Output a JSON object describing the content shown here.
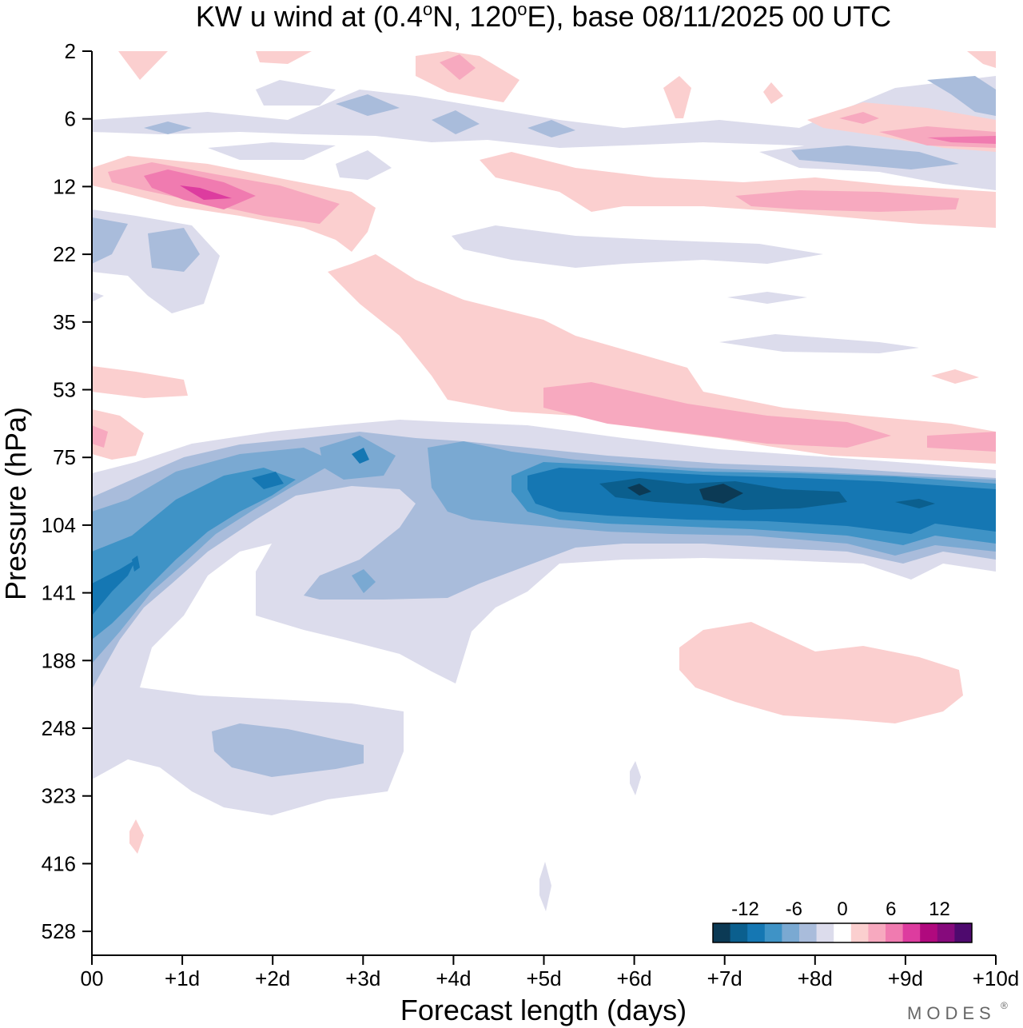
{
  "chart_data": {
    "type": "heatmap",
    "subtype": "filled-contour time-pressure section",
    "title": "KW u wind at (0.4°N, 120°E),  base 08/11/2025  00 UTC",
    "title_parts": {
      "prefix": "KW u wind at (0.4",
      "deg1": "o",
      "mid": "N, 120",
      "deg2": "o",
      "suffix": "E),  base 08/11/2025  00 UTC"
    },
    "xlabel": "Forecast length (days)",
    "ylabel": "Pressure (hPa)",
    "x_ticks": [
      "00",
      "+1d",
      "+2d",
      "+3d",
      "+4d",
      "+5d",
      "+6d",
      "+7d",
      "+8d",
      "+9d",
      "+10d"
    ],
    "x_range_days": [
      0,
      10
    ],
    "y_ticks_hpa": [
      "2",
      "6",
      "12",
      "22",
      "35",
      "53",
      "75",
      "104",
      "141",
      "188",
      "248",
      "323",
      "416",
      "528"
    ],
    "y_range_hpa": [
      2,
      528
    ],
    "colorbar": {
      "tick_labels": [
        "-12",
        "-6",
        "0",
        "6",
        "12"
      ],
      "levels": [
        -16,
        -14,
        -12,
        -10,
        -8,
        -6,
        -4,
        -2,
        2,
        4,
        6,
        8,
        10,
        12,
        14,
        16
      ],
      "colors": [
        "#0c3a55",
        "#0b5f8e",
        "#1577b3",
        "#3f93c6",
        "#7aa9d2",
        "#a9bcdb",
        "#dcdcec",
        "#ffffff",
        "#fbcfcf",
        "#f7a9bf",
        "#f07bb0",
        "#dd3c9f",
        "#b0097e",
        "#860a7c",
        "#4e0a6e"
      ]
    },
    "features": [
      {
        "name": "easterly jet core",
        "sign": "negative",
        "pressure_hpa": 90,
        "days": "5-10",
        "peak_ms": -14
      },
      {
        "name": "westerly band",
        "sign": "positive",
        "pressure_hpa": 60,
        "days": "5-10",
        "peak_ms": 6
      },
      {
        "name": "lower easterly lobe",
        "sign": "negative",
        "pressure_hpa": 141,
        "days": "0-2",
        "peak_ms": -10
      },
      {
        "name": "upper westerly",
        "sign": "positive",
        "pressure_hpa": 12,
        "days": "0-2.5",
        "peak_ms": 8
      },
      {
        "name": "lower-tropospheric westerly",
        "sign": "positive",
        "pressure_hpa": 200,
        "days": "6.5-9.5",
        "peak_ms": 3
      }
    ]
  },
  "branding": {
    "logo_text": "MODES",
    "registered_mark": "®"
  }
}
